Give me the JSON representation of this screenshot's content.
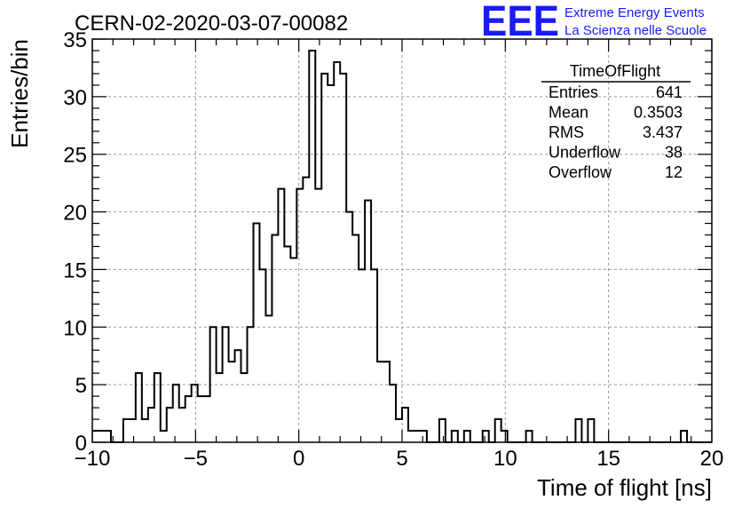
{
  "header": {
    "title": "CERN-02-2020-03-07-00082",
    "logo_text": "EEE",
    "logo_line1": "Extreme Energy Events",
    "logo_line2": "La Scienza nelle Scuole",
    "logo_color": "#1a1aff"
  },
  "stats_box": {
    "title": "TimeOfFlight",
    "rows": [
      {
        "label": "Entries",
        "value": "641"
      },
      {
        "label": "Mean",
        "value": "0.3503"
      },
      {
        "label": "RMS",
        "value": "3.437"
      },
      {
        "label": "Underflow",
        "value": "38"
      },
      {
        "label": "Overflow",
        "value": "12"
      }
    ]
  },
  "chart_data": {
    "type": "histogram",
    "xlabel": "Time of flight [ns]",
    "ylabel": "Entries/bin",
    "xlim": [
      -10,
      20
    ],
    "ylim": [
      0,
      35
    ],
    "bin_width": 0.3,
    "grid": true,
    "x_ticks": [
      -10,
      -5,
      0,
      5,
      10,
      15,
      20
    ],
    "x_tick_labels": [
      "−10",
      "−5",
      "0",
      "5",
      "10",
      "15",
      "20"
    ],
    "y_ticks": [
      0,
      5,
      10,
      15,
      20,
      25,
      30,
      35
    ],
    "bins": [
      {
        "x": -10.0,
        "value": 1
      },
      {
        "x": -9.7,
        "value": 1
      },
      {
        "x": -9.4,
        "value": 1
      },
      {
        "x": -9.1,
        "value": 0
      },
      {
        "x": -8.8,
        "value": 0
      },
      {
        "x": -8.5,
        "value": 2
      },
      {
        "x": -8.2,
        "value": 2
      },
      {
        "x": -7.9,
        "value": 6
      },
      {
        "x": -7.6,
        "value": 2
      },
      {
        "x": -7.3,
        "value": 3
      },
      {
        "x": -7.0,
        "value": 6
      },
      {
        "x": -6.7,
        "value": 1
      },
      {
        "x": -6.4,
        "value": 3
      },
      {
        "x": -6.1,
        "value": 5
      },
      {
        "x": -5.8,
        "value": 3
      },
      {
        "x": -5.5,
        "value": 4
      },
      {
        "x": -5.2,
        "value": 5
      },
      {
        "x": -4.9,
        "value": 4
      },
      {
        "x": -4.6,
        "value": 4
      },
      {
        "x": -4.3,
        "value": 10
      },
      {
        "x": -4.0,
        "value": 6
      },
      {
        "x": -3.7,
        "value": 10
      },
      {
        "x": -3.4,
        "value": 7
      },
      {
        "x": -3.1,
        "value": 8
      },
      {
        "x": -2.8,
        "value": 6
      },
      {
        "x": -2.5,
        "value": 10
      },
      {
        "x": -2.2,
        "value": 19
      },
      {
        "x": -1.9,
        "value": 15
      },
      {
        "x": -1.6,
        "value": 11
      },
      {
        "x": -1.3,
        "value": 18
      },
      {
        "x": -1.0,
        "value": 22
      },
      {
        "x": -0.7,
        "value": 17
      },
      {
        "x": -0.4,
        "value": 16
      },
      {
        "x": -0.1,
        "value": 22
      },
      {
        "x": 0.2,
        "value": 23
      },
      {
        "x": 0.5,
        "value": 34
      },
      {
        "x": 0.8,
        "value": 22
      },
      {
        "x": 1.1,
        "value": 32
      },
      {
        "x": 1.4,
        "value": 31
      },
      {
        "x": 1.7,
        "value": 33
      },
      {
        "x": 2.0,
        "value": 32
      },
      {
        "x": 2.3,
        "value": 20
      },
      {
        "x": 2.6,
        "value": 18
      },
      {
        "x": 2.9,
        "value": 15
      },
      {
        "x": 3.2,
        "value": 21
      },
      {
        "x": 3.5,
        "value": 15
      },
      {
        "x": 3.8,
        "value": 7
      },
      {
        "x": 4.1,
        "value": 7
      },
      {
        "x": 4.4,
        "value": 5
      },
      {
        "x": 4.7,
        "value": 2
      },
      {
        "x": 5.0,
        "value": 3
      },
      {
        "x": 5.3,
        "value": 1
      },
      {
        "x": 5.6,
        "value": 1
      },
      {
        "x": 5.9,
        "value": 1
      },
      {
        "x": 6.2,
        "value": 0
      },
      {
        "x": 6.5,
        "value": 0
      },
      {
        "x": 6.8,
        "value": 2
      },
      {
        "x": 7.1,
        "value": 0
      },
      {
        "x": 7.4,
        "value": 1
      },
      {
        "x": 7.7,
        "value": 0
      },
      {
        "x": 8.0,
        "value": 1
      },
      {
        "x": 8.3,
        "value": 0
      },
      {
        "x": 8.6,
        "value": 0
      },
      {
        "x": 8.9,
        "value": 1
      },
      {
        "x": 9.2,
        "value": 0
      },
      {
        "x": 9.5,
        "value": 2
      },
      {
        "x": 9.8,
        "value": 1
      },
      {
        "x": 10.1,
        "value": 0
      },
      {
        "x": 10.4,
        "value": 0
      },
      {
        "x": 10.7,
        "value": 0
      },
      {
        "x": 11.0,
        "value": 1
      },
      {
        "x": 11.3,
        "value": 0
      },
      {
        "x": 11.6,
        "value": 0
      },
      {
        "x": 11.9,
        "value": 0
      },
      {
        "x": 12.2,
        "value": 0
      },
      {
        "x": 12.5,
        "value": 0
      },
      {
        "x": 12.8,
        "value": 0
      },
      {
        "x": 13.1,
        "value": 0
      },
      {
        "x": 13.4,
        "value": 2
      },
      {
        "x": 13.7,
        "value": 0
      },
      {
        "x": 14.0,
        "value": 2
      },
      {
        "x": 14.3,
        "value": 0
      },
      {
        "x": 14.6,
        "value": 0
      },
      {
        "x": 14.9,
        "value": 0
      },
      {
        "x": 15.2,
        "value": 0
      },
      {
        "x": 15.5,
        "value": 0
      },
      {
        "x": 15.8,
        "value": 0
      },
      {
        "x": 16.1,
        "value": 0
      },
      {
        "x": 16.4,
        "value": 0
      },
      {
        "x": 16.7,
        "value": 0
      },
      {
        "x": 17.0,
        "value": 0
      },
      {
        "x": 17.3,
        "value": 0
      },
      {
        "x": 17.6,
        "value": 0
      },
      {
        "x": 17.9,
        "value": 0
      },
      {
        "x": 18.2,
        "value": 0
      },
      {
        "x": 18.5,
        "value": 1
      },
      {
        "x": 18.8,
        "value": 0
      },
      {
        "x": 19.1,
        "value": 0
      },
      {
        "x": 19.4,
        "value": 0
      },
      {
        "x": 19.7,
        "value": 0
      }
    ]
  }
}
